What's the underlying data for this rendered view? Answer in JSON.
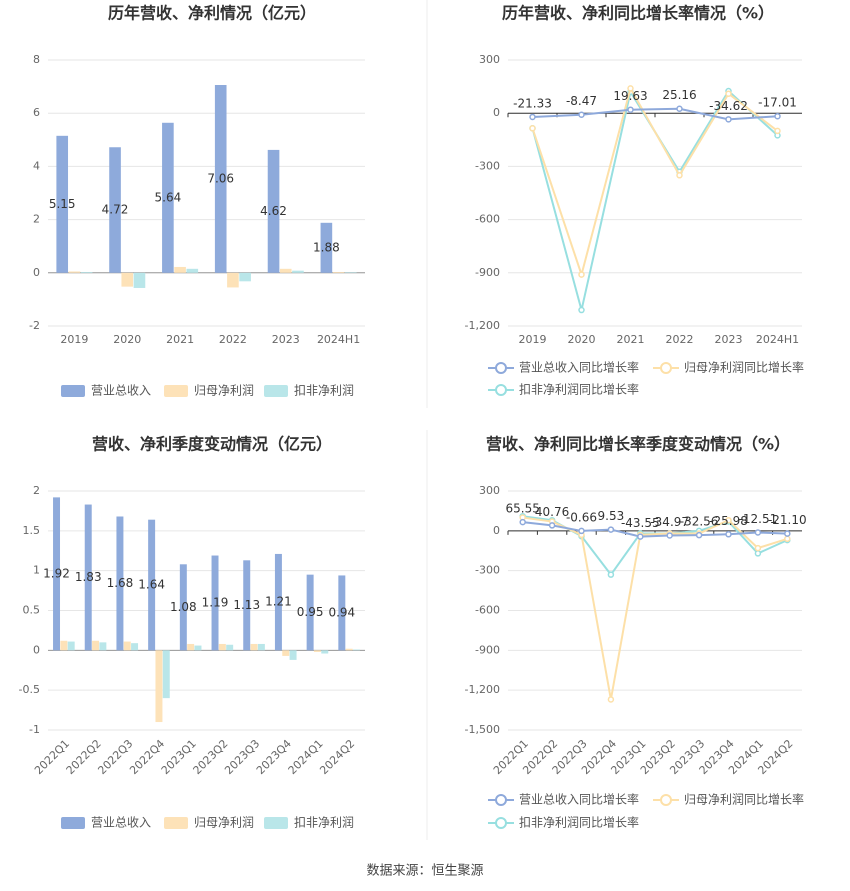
{
  "chart_data": [
    {
      "type": "bar",
      "title": "历年营收、净利情况（亿元）",
      "categories": [
        "2019",
        "2020",
        "2021",
        "2022",
        "2023",
        "2024H1"
      ],
      "series": [
        {
          "name": "营业总收入",
          "color": "#8eaadb",
          "values": [
            5.15,
            4.72,
            5.64,
            7.06,
            4.62,
            1.88
          ]
        },
        {
          "name": "归母净利润",
          "color": "#fde2b8",
          "values": [
            0.05,
            -0.52,
            0.22,
            -0.55,
            0.15,
            0.03
          ]
        },
        {
          "name": "扣非净利润",
          "color": "#b9e6e9",
          "values": [
            0.03,
            -0.57,
            0.15,
            -0.32,
            0.08,
            0.02
          ]
        }
      ],
      "ylim": [
        -2,
        8
      ],
      "yticks": [
        -2,
        0,
        2,
        4,
        6,
        8
      ],
      "grid": true
    },
    {
      "type": "line",
      "title": "历年营收、净利同比增长率情况（%）",
      "categories": [
        "2019",
        "2020",
        "2021",
        "2022",
        "2023",
        "2024H1"
      ],
      "series": [
        {
          "name": "营业总收入同比增长率",
          "color": "#8ea9db",
          "values": [
            -21.33,
            -8.47,
            19.63,
            25.16,
            -34.62,
            -17.01
          ]
        },
        {
          "name": "归母净利润同比增长率",
          "color": "#fde0a8",
          "values": [
            -85,
            -910,
            140,
            -350,
            110,
            -100
          ]
        },
        {
          "name": "扣非净利润同比增长率",
          "color": "#97dfe0",
          "values": [
            -85,
            -1110,
            120,
            -330,
            125,
            -125
          ]
        }
      ],
      "ylim": [
        -1200,
        300
      ],
      "yticks": [
        {
          "value": -1200,
          "label": "-1,200"
        },
        -900,
        -600,
        -300,
        0,
        300
      ],
      "grid": true
    },
    {
      "type": "bar",
      "title": "营收、净利季度变动情况（亿元）",
      "categories": [
        "2022Q1",
        "2022Q2",
        "2022Q3",
        "2022Q4",
        "2023Q1",
        "2023Q2",
        "2023Q3",
        "2023Q4",
        "2024Q1",
        "2024Q2"
      ],
      "series": [
        {
          "name": "营业总收入",
          "color": "#8eaadb",
          "values": [
            1.92,
            1.83,
            1.68,
            1.64,
            1.08,
            1.19,
            1.13,
            1.21,
            0.95,
            0.94
          ]
        },
        {
          "name": "归母净利润",
          "color": "#fde2b8",
          "values": [
            0.12,
            0.12,
            0.11,
            -0.9,
            0.08,
            0.08,
            0.08,
            -0.07,
            -0.02,
            0.02
          ]
        },
        {
          "name": "扣非净利润",
          "color": "#b9e6e9",
          "values": [
            0.11,
            0.1,
            0.09,
            -0.6,
            0.06,
            0.07,
            0.08,
            -0.12,
            -0.04,
            0.01
          ]
        }
      ],
      "ylim": [
        -1,
        2
      ],
      "yticks": [
        -1,
        -0.5,
        0,
        0.5,
        1,
        1.5,
        2
      ],
      "grid": true
    },
    {
      "type": "line",
      "title": "营收、净利同比增长率季度变动情况（%）",
      "categories": [
        "2022Q1",
        "2022Q2",
        "2022Q3",
        "2022Q4",
        "2023Q1",
        "2023Q2",
        "2023Q3",
        "2023Q4",
        "2024Q1",
        "2024Q2"
      ],
      "series": [
        {
          "name": "营业总收入同比增长率",
          "color": "#8ea9db",
          "values": [
            65.55,
            40.76,
            -0.66,
            9.53,
            -43.55,
            -34.97,
            -32.56,
            -25.98,
            -12.51,
            -21.1
          ],
          "value_labels": [
            "65.55",
            "40.76",
            "-0.66",
            "9.53",
            "-43.55",
            "-34.97",
            "-32.56",
            "-25.98",
            "-12.51",
            "-21.10"
          ]
        },
        {
          "name": "归母净利润同比增长率",
          "color": "#fde0a8",
          "values": [
            100,
            70,
            -30,
            -1270,
            -30,
            -20,
            -20,
            80,
            -130,
            -60
          ]
        },
        {
          "name": "扣非净利润同比增长率",
          "color": "#97dfe0",
          "values": [
            110,
            80,
            -40,
            -330,
            -20,
            -20,
            0,
            70,
            -170,
            -70
          ]
        }
      ],
      "ylim": [
        {
          "value": -1500,
          "label": "-1,500"
        },
        300
      ],
      "yticks": [
        {
          "value": -1500,
          "label": "-1,500"
        },
        {
          "value": -1200,
          "label": "-1,200"
        },
        -900,
        -600,
        -300,
        0,
        300
      ],
      "grid": true
    }
  ],
  "source": "数据来源：恒生聚源"
}
